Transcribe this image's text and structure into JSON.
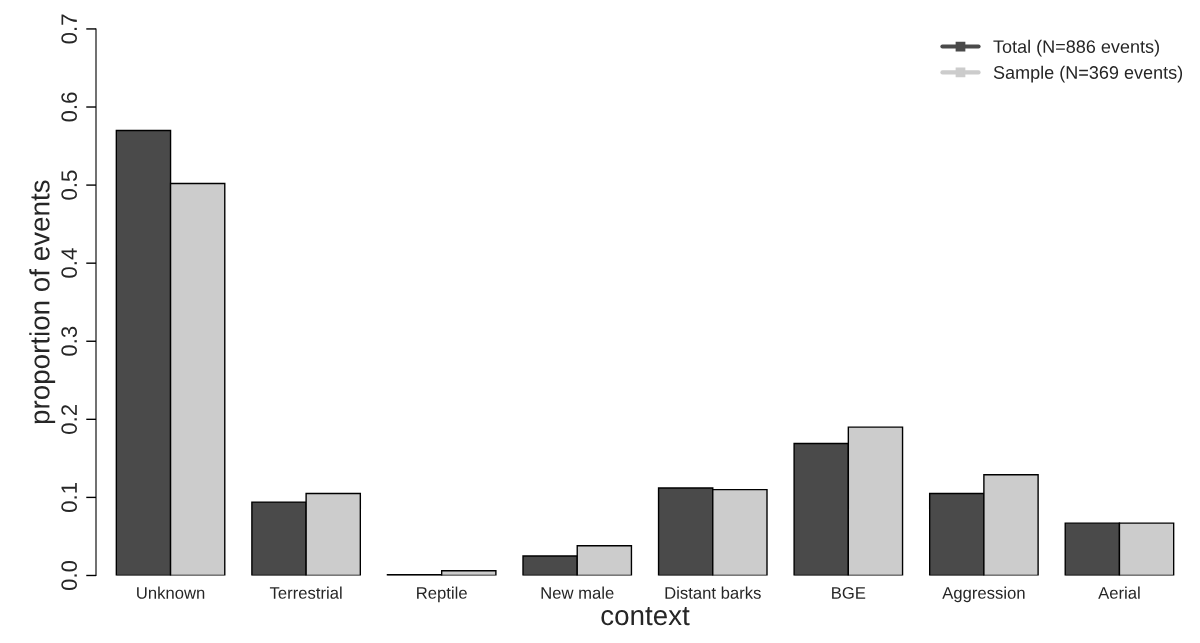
{
  "chart_data": {
    "type": "bar",
    "xlabel": "context",
    "ylabel": "proportion of events",
    "categories": [
      "Unknown",
      "Terrestrial",
      "Reptile",
      "New male",
      "Distant barks",
      "BGE",
      "Aggression",
      "Aerial"
    ],
    "series": [
      {
        "name": "Total (N=886 events)",
        "color": "#4a4a4a",
        "values": [
          0.57,
          0.094,
          0.001,
          0.025,
          0.112,
          0.169,
          0.105,
          0.067
        ]
      },
      {
        "name": "Sample (N=369 events)",
        "color": "#cccccc",
        "values": [
          0.502,
          0.105,
          0.006,
          0.038,
          0.11,
          0.19,
          0.129,
          0.067
        ]
      }
    ],
    "ylim": [
      0,
      0.7
    ],
    "yticks": [
      {
        "value": 0,
        "label": "0.0"
      },
      0.1,
      0.2,
      0.3,
      0.4,
      0.5,
      0.6,
      0.7
    ],
    "grid": false,
    "legend": "top right"
  }
}
